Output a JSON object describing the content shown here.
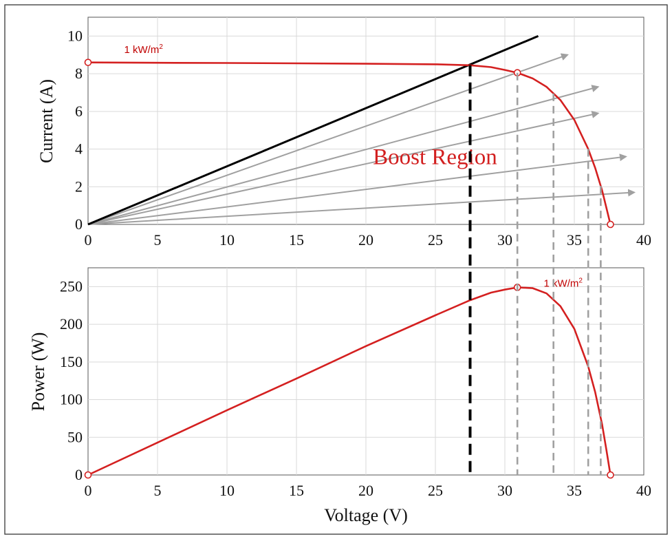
{
  "chart_data": [
    {
      "type": "line",
      "xlabel": "",
      "ylabel": "Current (A)",
      "xlim": [
        0,
        40
      ],
      "ylim": [
        0,
        11
      ],
      "xticks": [
        0,
        5,
        10,
        15,
        20,
        25,
        30,
        35,
        40
      ],
      "yticks": [
        0,
        2,
        4,
        6,
        8,
        10
      ],
      "grid": true,
      "series": [
        {
          "name": "1 kW/m",
          "name_superscript": "2",
          "color": "#d42020",
          "x": [
            0,
            5,
            10,
            15,
            20,
            25,
            27.5,
            29,
            30,
            30.9,
            32,
            33,
            34,
            35,
            36,
            36.5,
            37,
            37.3,
            37.6
          ],
          "y": [
            8.6,
            8.58,
            8.57,
            8.55,
            8.53,
            8.5,
            8.45,
            8.35,
            8.2,
            8.05,
            7.75,
            7.3,
            6.6,
            5.55,
            4.0,
            3.0,
            1.8,
            0.9,
            0
          ]
        }
      ],
      "load_line": {
        "color": "#000000",
        "x": [
          0,
          32.4
        ],
        "y": [
          0,
          10
        ]
      },
      "boost_lines": {
        "color": "#a0a0a0",
        "lines": [
          {
            "x": [
              0,
              34.5
            ],
            "y": [
              0,
              9.0
            ]
          },
          {
            "x": [
              0,
              36.7
            ],
            "y": [
              0,
              7.3
            ]
          },
          {
            "x": [
              0,
              36.7
            ],
            "y": [
              0,
              5.9
            ]
          },
          {
            "x": [
              0,
              38.7
            ],
            "y": [
              0,
              3.6
            ]
          },
          {
            "x": [
              0,
              39.3
            ],
            "y": [
              0,
              1.7
            ]
          }
        ]
      },
      "markers": [
        {
          "x": 0,
          "y": 8.6
        },
        {
          "x": 30.9,
          "y": 8.05
        },
        {
          "x": 37.6,
          "y": 0
        }
      ],
      "annotations": [
        {
          "text": "1 kW/m",
          "superscript": "2",
          "x": 2.6,
          "y": 9.1
        },
        {
          "text": "Boost Region",
          "x": 20.5,
          "y": 3.2
        }
      ]
    },
    {
      "type": "line",
      "xlabel": "Voltage (V)",
      "ylabel": "Power (W)",
      "xlim": [
        0,
        40
      ],
      "ylim": [
        0,
        275
      ],
      "xticks": [
        0,
        5,
        10,
        15,
        20,
        25,
        30,
        35,
        40
      ],
      "yticks": [
        0,
        50,
        100,
        150,
        200,
        250
      ],
      "grid": true,
      "series": [
        {
          "name": "1 kW/m",
          "name_superscript": "2",
          "color": "#d42020",
          "x": [
            0,
            5,
            10,
            15,
            20,
            25,
            27.5,
            29,
            30,
            30.9,
            32,
            33,
            34,
            35,
            36,
            36.5,
            37,
            37.3,
            37.6
          ],
          "y": [
            0,
            43,
            86,
            128,
            171,
            212,
            232,
            242,
            246,
            249,
            248,
            241,
            224,
            194,
            144,
            110,
            67,
            34,
            0
          ]
        }
      ],
      "markers": [
        {
          "x": 0,
          "y": 0
        },
        {
          "x": 30.9,
          "y": 249
        },
        {
          "x": 37.6,
          "y": 0
        }
      ],
      "annotations": [
        {
          "text": "1 kW/m",
          "superscript": "2",
          "x": 32.8,
          "y": 250
        }
      ]
    }
  ],
  "reference_lines": {
    "operating_point_voltage": 27.5,
    "operating_point_color": "#000000",
    "boost_voltages": [
      30.9,
      33.5,
      36.0,
      36.9
    ],
    "boost_color": "#a0a0a0"
  }
}
